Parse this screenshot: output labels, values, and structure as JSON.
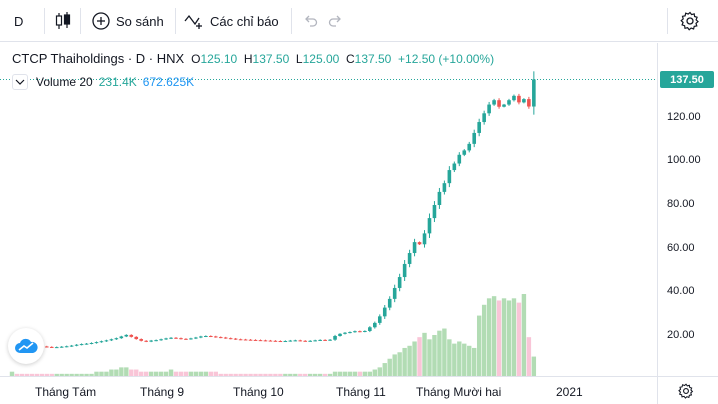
{
  "toolbar": {
    "interval": "D",
    "compare_label": "So sánh",
    "indicators_label": "Các chỉ báo"
  },
  "legend": {
    "title": "CTCP Thaiholdings · D · HNX",
    "open_prefix": "O",
    "open": "125.10",
    "high_prefix": "H",
    "high": "137.50",
    "low_prefix": "L",
    "low": "125.00",
    "close_prefix": "C",
    "close": "137.50",
    "change": "+12.50 (+10.00%)"
  },
  "volume_legend": {
    "name": "Volume 20",
    "value": "231.4K",
    "ma_value": "672.625K"
  },
  "price_tag": "137.50",
  "colors": {
    "up": "#26a69a",
    "down": "#ef5350",
    "vol_up": "#a5d6a7",
    "vol_down": "#f8bbd0",
    "accent": "#2196f3"
  },
  "chart_data": {
    "type": "candlestick",
    "title": "CTCP Thaiholdings · D · HNX",
    "price_ticks": [
      "140.00",
      "120.00",
      "100.00",
      "80.00",
      "60.00",
      "40.00",
      "20.00"
    ],
    "price_range": [
      0,
      150
    ],
    "time_ticks": [
      "Tháng Tám",
      "Tháng 9",
      "Tháng 10",
      "Tháng 11",
      "Tháng Mười hai",
      "2021"
    ],
    "last_price": 137.5,
    "closes": [
      17.0,
      16.6,
      16.2,
      15.9,
      15.6,
      15.4,
      15.2,
      15.0,
      14.8,
      14.9,
      15.1,
      15.3,
      15.6,
      16.0,
      16.3,
      16.5,
      16.8,
      17.2,
      17.6,
      18.0,
      18.5,
      19.0,
      19.8,
      20.5,
      19.6,
      18.6,
      17.8,
      17.5,
      17.9,
      18.1,
      18.5,
      18.9,
      19.2,
      19.0,
      18.7,
      18.6,
      18.9,
      19.3,
      19.8,
      20.0,
      19.8,
      19.5,
      19.3,
      19.0,
      18.8,
      18.5,
      18.4,
      18.3,
      18.2,
      18.1,
      18.0,
      17.9,
      17.8,
      17.7,
      17.6,
      17.7,
      17.9,
      18.0,
      17.8,
      17.7,
      17.8,
      18.0,
      18.2,
      18.1,
      18.3,
      20.0,
      21.0,
      21.5,
      21.8,
      22.2,
      22.0,
      22.3,
      24.0,
      26.0,
      29.0,
      33.0,
      37.0,
      42.0,
      47.0,
      53.0,
      58.0,
      63.0,
      62.0,
      67.0,
      74.0,
      80.0,
      86.0,
      90.0,
      96.0,
      99.0,
      103.0,
      105.0,
      108.0,
      113.0,
      118.0,
      122.0,
      126.0,
      128.0,
      125.0,
      126.0,
      128.0,
      130.0,
      127.0,
      128.5,
      125.1,
      137.5
    ],
    "volumes": [
      2,
      1,
      1,
      1,
      1,
      1,
      1,
      1,
      1,
      1,
      1,
      1,
      1,
      1,
      1,
      1,
      1,
      2,
      2,
      2,
      3,
      3,
      4,
      4,
      3,
      3,
      2,
      2,
      2,
      2,
      2,
      2,
      3,
      2,
      2,
      2,
      2,
      2,
      2,
      2,
      2,
      2,
      1,
      1,
      1,
      1,
      1,
      1,
      1,
      1,
      1,
      1,
      1,
      1,
      1,
      1,
      1,
      1,
      1,
      1,
      1,
      1,
      1,
      1,
      1,
      2,
      2,
      2,
      2,
      2,
      2,
      2,
      2,
      3,
      4,
      6,
      8,
      10,
      11,
      13,
      14,
      16,
      18,
      20,
      17,
      19,
      21,
      22,
      17,
      15,
      16,
      15,
      14,
      13,
      28,
      33,
      36,
      37,
      35,
      36,
      35,
      36,
      34,
      38,
      18,
      9
    ],
    "volume_unit": "relative"
  }
}
